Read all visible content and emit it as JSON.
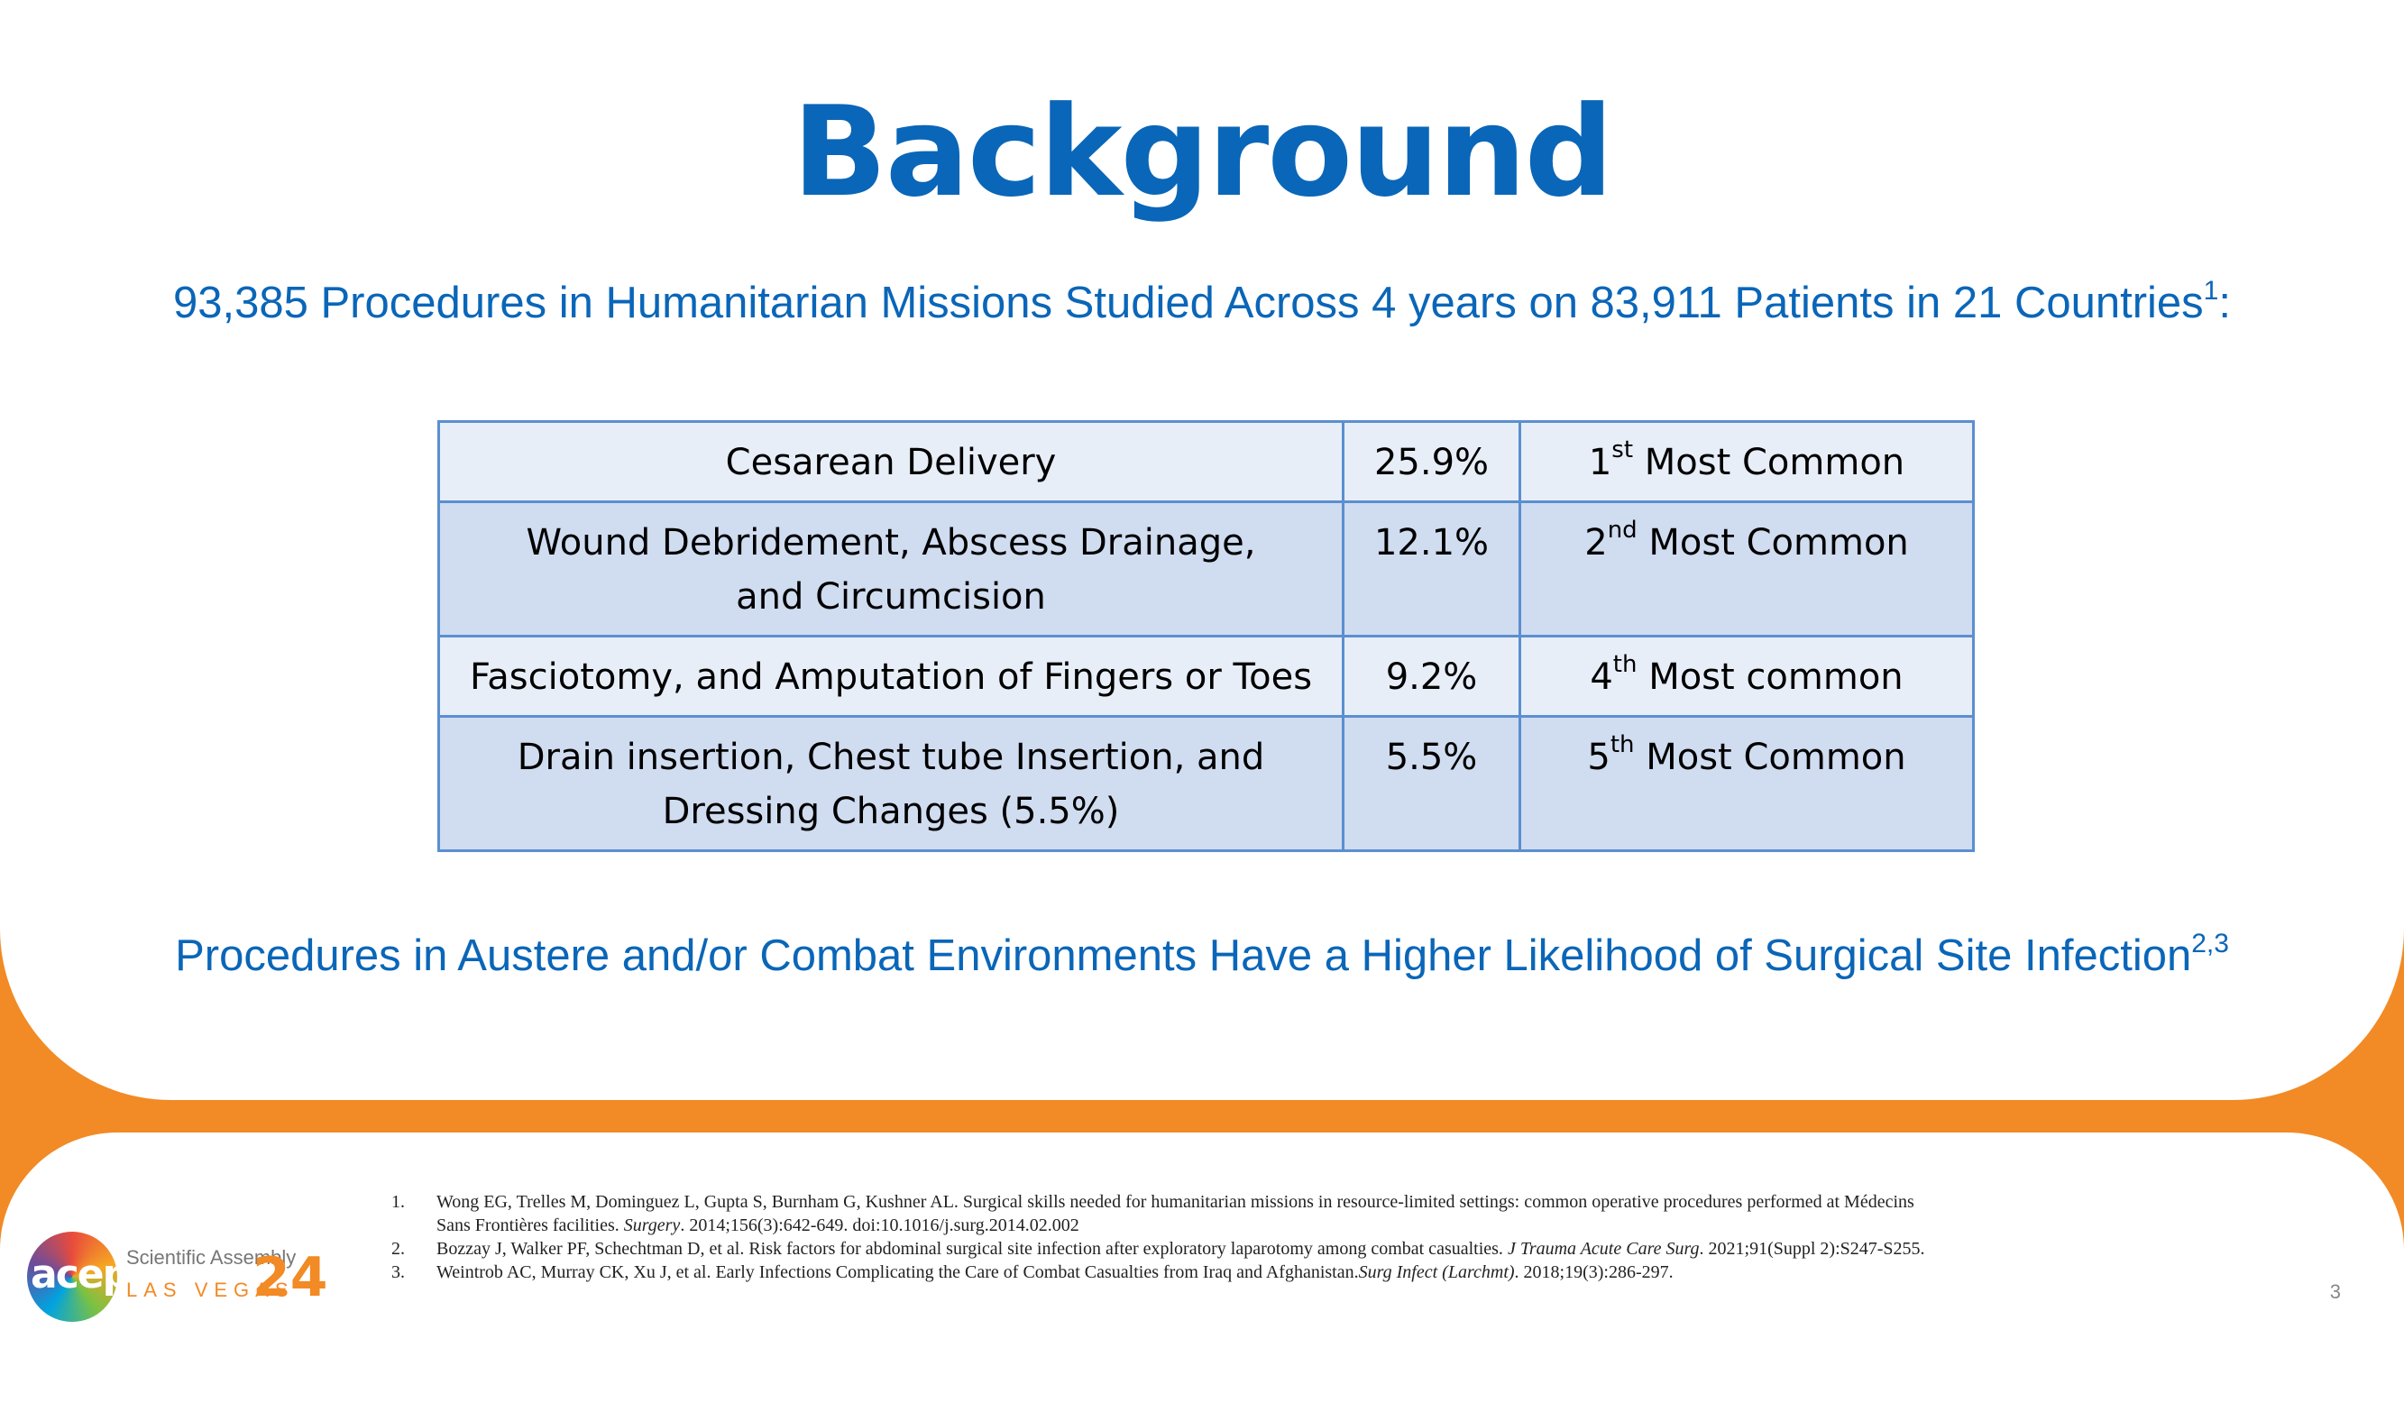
{
  "title": "Background",
  "subtitle": {
    "text": "93,385 Procedures in Humanitarian Missions Studied Across 4 years on 83,911 Patients in 21 Countries",
    "ref": "1",
    "suffix": ":"
  },
  "table": {
    "rows": [
      {
        "procedure": "Cesarean Delivery",
        "percent": "25.9%",
        "rank_num": "1",
        "rank_sup": "st",
        "rank_text": " Most Common"
      },
      {
        "procedure": "Wound Debridement, Abscess Drainage,",
        "procedure_line2": "and Circumcision",
        "percent": "12.1%",
        "rank_num": "2",
        "rank_sup": "nd",
        "rank_text": " Most Common"
      },
      {
        "procedure": "Fasciotomy, and Amputation of Fingers or Toes",
        "percent": "9.2%",
        "rank_num": "4",
        "rank_sup": "th",
        "rank_text": " Most common"
      },
      {
        "procedure": "Drain insertion, Chest tube Insertion, and",
        "procedure_line2": "Dressing Changes (5.5%)",
        "percent": "5.5%",
        "rank_num": "5",
        "rank_sup": "th",
        "rank_text": " Most Common"
      }
    ]
  },
  "statement": {
    "text": "Procedures in Austere and/or Combat Environments Have a Higher Likelihood of Surgical Site Infection",
    "ref": "2,3"
  },
  "references": [
    {
      "num": "1.",
      "line1": "Wong EG, Trelles M, Dominguez L, Gupta S, Burnham G, Kushner AL. Surgical skills needed for humanitarian missions in resource-limited settings: common operative procedures performed at Médecins",
      "line2_pre": "Sans Frontières facilities. ",
      "journal": "Surgery",
      "post": ". 2014;156(3):642-649. doi:10.1016/j.surg.2014.02.002"
    },
    {
      "num": "2.",
      "pre": "Bozzay J, Walker PF, Schechtman D, et al. Risk factors for abdominal surgical site infection after exploratory laparotomy among combat casualties. ",
      "journal": "J Trauma Acute Care Surg",
      "post": ". 2021;91(Suppl 2):S247-S255."
    },
    {
      "num": "3.",
      "pre": "Weintrob AC, Murray CK, Xu J, et al. Early Infections Complicating the Care of Combat Casualties from Iraq and Afghanistan.",
      "journal": "Surg Infect (Larchmt)",
      "post": ". 2018;19(3):286-297."
    }
  ],
  "logo": {
    "acep": "acep",
    "line1": "Scientific Assembly",
    "line2": "LAS VEGAS",
    "year": "24"
  },
  "page_number": "3",
  "colors": {
    "title_blue": "#0a66b8",
    "accent_orange": "#f28a25",
    "table_border": "#5b8fd0"
  }
}
